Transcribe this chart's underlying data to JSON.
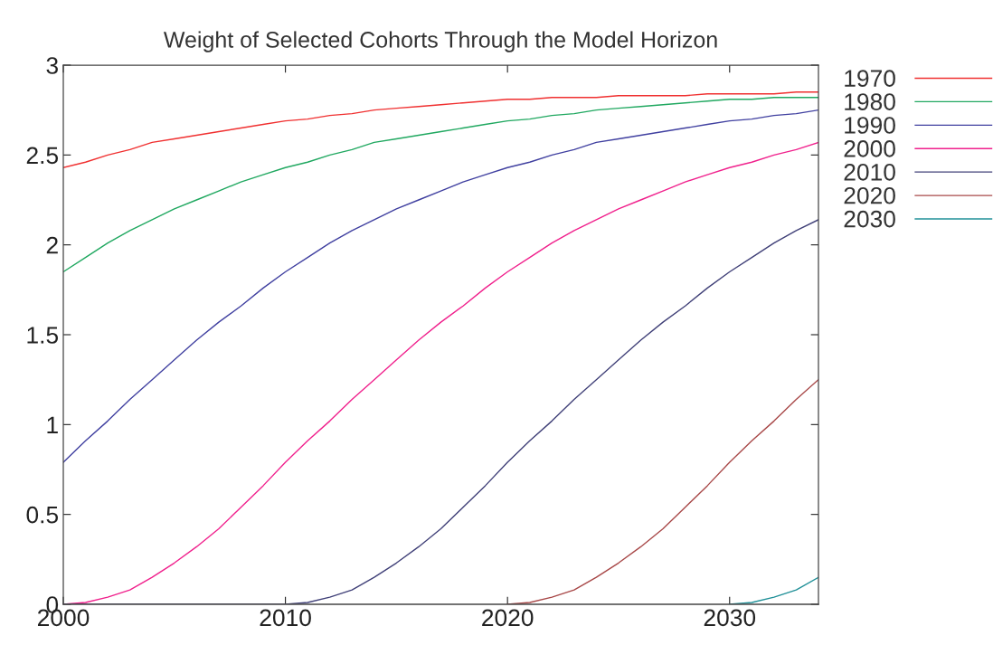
{
  "chart_data": {
    "type": "line",
    "title": "Weight of Selected Cohorts Through the Model Horizon",
    "x": [
      2000,
      2001,
      2002,
      2003,
      2004,
      2005,
      2006,
      2007,
      2008,
      2009,
      2010,
      2011,
      2012,
      2013,
      2014,
      2015,
      2016,
      2017,
      2018,
      2019,
      2020,
      2021,
      2022,
      2023,
      2024,
      2025,
      2026,
      2027,
      2028,
      2029,
      2030,
      2031,
      2032,
      2033,
      2034
    ],
    "series": [
      {
        "name": "1970",
        "color": "#f03030",
        "values": [
          2.43,
          2.46,
          2.5,
          2.53,
          2.57,
          2.59,
          2.61,
          2.63,
          2.65,
          2.67,
          2.69,
          2.7,
          2.72,
          2.73,
          2.75,
          2.76,
          2.77,
          2.78,
          2.79,
          2.8,
          2.81,
          2.81,
          2.82,
          2.82,
          2.82,
          2.83,
          2.83,
          2.83,
          2.83,
          2.84,
          2.84,
          2.84,
          2.84,
          2.85,
          2.85
        ]
      },
      {
        "name": "1980",
        "color": "#20a860",
        "values": [
          1.85,
          1.93,
          2.01,
          2.08,
          2.14,
          2.2,
          2.25,
          2.3,
          2.35,
          2.39,
          2.43,
          2.46,
          2.5,
          2.53,
          2.57,
          2.59,
          2.61,
          2.63,
          2.65,
          2.67,
          2.69,
          2.7,
          2.72,
          2.73,
          2.75,
          2.76,
          2.77,
          2.78,
          2.79,
          2.8,
          2.81,
          2.81,
          2.82,
          2.82,
          2.82
        ]
      },
      {
        "name": "1990",
        "color": "#4040a0",
        "values": [
          0.79,
          0.91,
          1.02,
          1.14,
          1.25,
          1.36,
          1.47,
          1.57,
          1.66,
          1.76,
          1.85,
          1.93,
          2.01,
          2.08,
          2.14,
          2.2,
          2.25,
          2.3,
          2.35,
          2.39,
          2.43,
          2.46,
          2.5,
          2.53,
          2.57,
          2.59,
          2.61,
          2.63,
          2.65,
          2.67,
          2.69,
          2.7,
          2.72,
          2.73,
          2.75
        ]
      },
      {
        "name": "2000",
        "color": "#f0208c",
        "values": [
          0,
          0.01,
          0.04,
          0.08,
          0.15,
          0.23,
          0.32,
          0.42,
          0.54,
          0.66,
          0.79,
          0.91,
          1.02,
          1.14,
          1.25,
          1.36,
          1.47,
          1.57,
          1.66,
          1.76,
          1.85,
          1.93,
          2.01,
          2.08,
          2.14,
          2.2,
          2.25,
          2.3,
          2.35,
          2.39,
          2.43,
          2.46,
          2.5,
          2.53,
          2.57
        ]
      },
      {
        "name": "2010",
        "color": "#404078",
        "values": [
          0,
          0,
          0,
          0,
          0,
          0,
          0,
          0,
          0,
          0,
          0,
          0.01,
          0.04,
          0.08,
          0.15,
          0.23,
          0.32,
          0.42,
          0.54,
          0.66,
          0.79,
          0.91,
          1.02,
          1.14,
          1.25,
          1.36,
          1.47,
          1.57,
          1.66,
          1.76,
          1.85,
          1.93,
          2.01,
          2.08,
          2.14
        ]
      },
      {
        "name": "2020",
        "color": "#a84848",
        "values": [
          null,
          null,
          null,
          null,
          null,
          null,
          null,
          null,
          null,
          null,
          null,
          null,
          null,
          null,
          null,
          null,
          null,
          null,
          null,
          null,
          0,
          0.01,
          0.04,
          0.08,
          0.15,
          0.23,
          0.32,
          0.42,
          0.54,
          0.66,
          0.79,
          0.91,
          1.02,
          1.14,
          1.25
        ]
      },
      {
        "name": "2030",
        "color": "#209098",
        "values": [
          null,
          null,
          null,
          null,
          null,
          null,
          null,
          null,
          null,
          null,
          null,
          null,
          null,
          null,
          null,
          null,
          null,
          null,
          null,
          null,
          null,
          null,
          null,
          null,
          null,
          null,
          null,
          null,
          null,
          null,
          0,
          0.01,
          0.04,
          0.08,
          0.15
        ]
      }
    ],
    "xlim": [
      2000,
      2034
    ],
    "xticks": [
      2000,
      2010,
      2020,
      2030
    ],
    "ylim": [
      0,
      3
    ],
    "yticks": [
      0,
      0.5,
      1,
      1.5,
      2,
      2.5,
      3
    ],
    "grid": false,
    "legend": "top right",
    "marker": "none",
    "line_style": "solid"
  }
}
